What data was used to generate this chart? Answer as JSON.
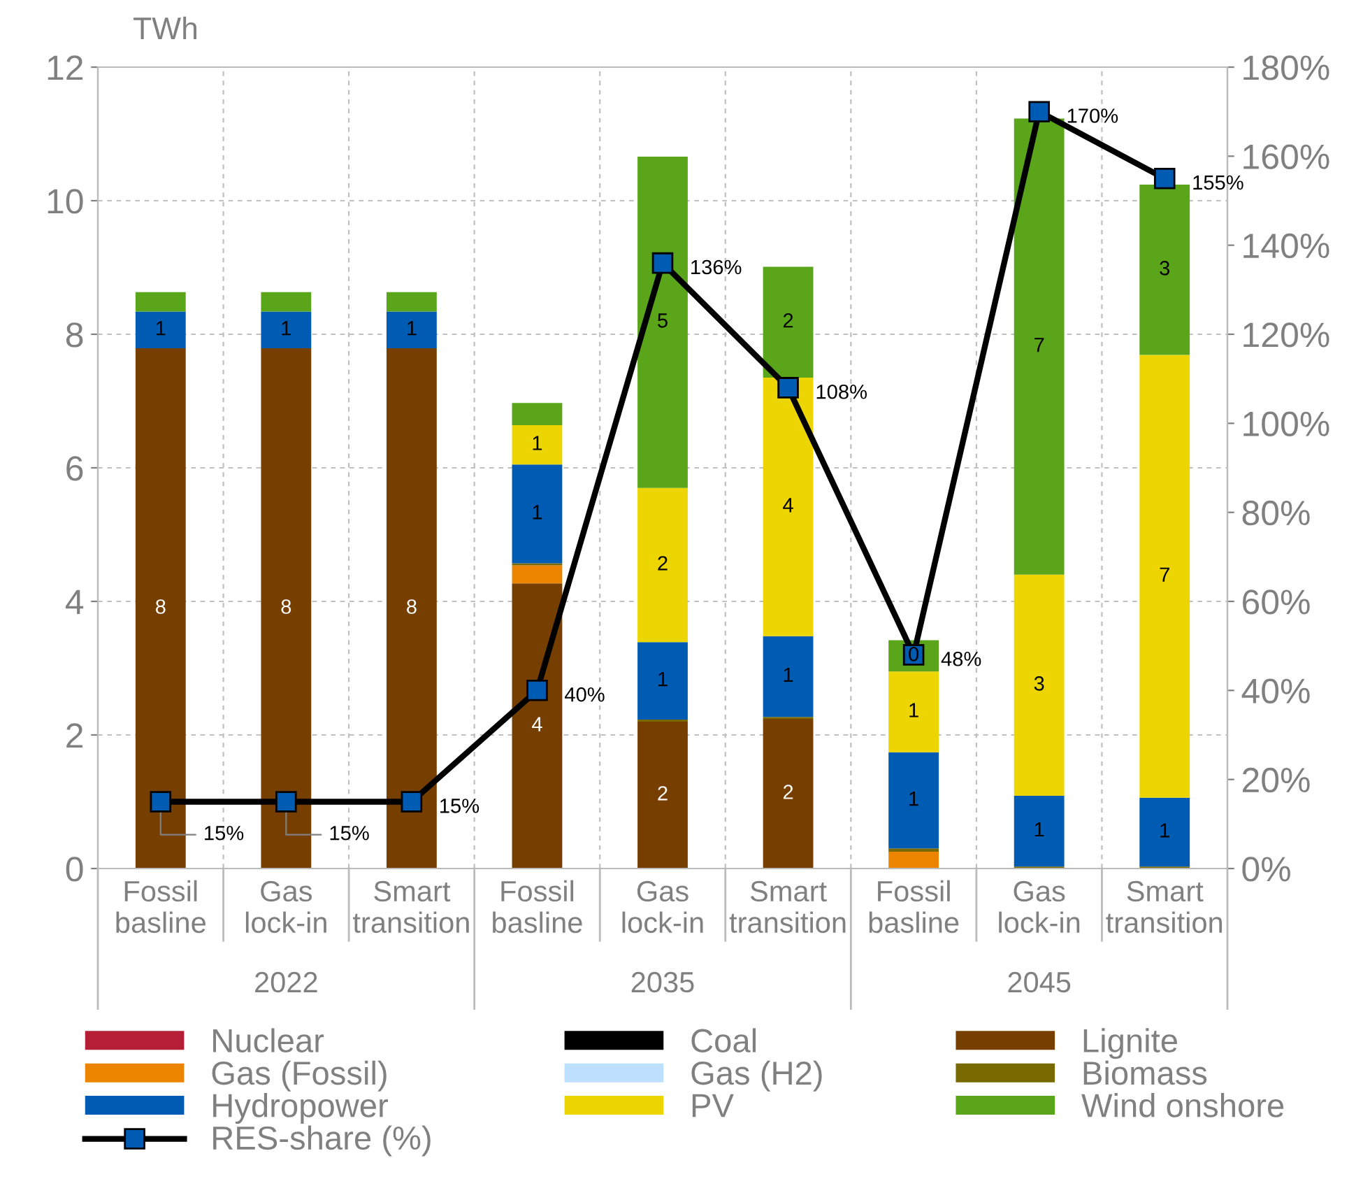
{
  "chart_data": {
    "type": "bar",
    "stacked": true,
    "ylabel": "TWh",
    "categories": [
      "Fossil basline",
      "Gas lock-in",
      "Smart transition",
      "Fossil basline",
      "Gas lock-in",
      "Smart transition",
      "Fossil basline",
      "Gas lock-in",
      "Smart transition"
    ],
    "annotations": [
      "2022",
      "2035",
      "2045"
    ],
    "ylim": [
      0,
      12
    ],
    "yticks": [
      0,
      2,
      4,
      6,
      8,
      10,
      12
    ],
    "y2lim": [
      0,
      180
    ],
    "y2ticks": [
      {
        "value": 0,
        "label": "0%"
      },
      {
        "value": 20,
        "label": "20%"
      },
      {
        "value": 40,
        "label": "40%"
      },
      {
        "value": 60,
        "label": "60%"
      },
      {
        "value": 80,
        "label": "80%"
      },
      {
        "value": 100,
        "label": "100%"
      },
      {
        "value": 120,
        "label": "120%"
      },
      {
        "value": 140,
        "label": "140%"
      },
      {
        "value": 160,
        "label": "160%"
      },
      {
        "value": 180,
        "label": "180%"
      }
    ],
    "grid": true,
    "legend": "bottom",
    "series": [
      {
        "name": "Nuclear",
        "color": "#b41f35",
        "values": [
          0,
          0,
          0,
          0,
          0,
          0,
          0,
          0,
          0
        ]
      },
      {
        "name": "Coal",
        "color": "#000000",
        "values": [
          0,
          0,
          0,
          0,
          0,
          0,
          0,
          0,
          0
        ]
      },
      {
        "name": "Lignite",
        "color": "#763f00",
        "values": [
          7.79,
          7.79,
          7.79,
          4.27,
          2.2,
          2.24,
          0,
          0,
          0
        ],
        "value_labels": [
          "8",
          "8",
          "8",
          "4",
          "2",
          "2",
          null,
          null,
          null
        ]
      },
      {
        "name": "Gas (Fossil)",
        "color": "#ec8400",
        "values": [
          0,
          0,
          0,
          0.27,
          0,
          0,
          0.25,
          0,
          0
        ]
      },
      {
        "name": "Gas (H2)",
        "color": "#bde0ff",
        "values": [
          0,
          0,
          0,
          0,
          0,
          0,
          0,
          0,
          0
        ]
      },
      {
        "name": "Biomass",
        "color": "#786a00",
        "values": [
          0,
          0,
          0,
          0.03,
          0.03,
          0.03,
          0.05,
          0.03,
          0.03
        ]
      },
      {
        "name": "Hydropower",
        "color": "#005bb2",
        "values": [
          0.55,
          0.55,
          0.55,
          1.48,
          1.16,
          1.21,
          1.44,
          1.06,
          1.03
        ],
        "value_labels": [
          "1",
          "1",
          "1",
          "1",
          "1",
          "1",
          "1",
          "1",
          "1"
        ]
      },
      {
        "name": "PV",
        "color": "#ecd500",
        "values": [
          0,
          0,
          0,
          0.59,
          2.31,
          3.87,
          1.21,
          3.31,
          6.63
        ],
        "value_labels": [
          null,
          null,
          null,
          "1",
          "2",
          "4",
          "1",
          "3",
          "7"
        ]
      },
      {
        "name": "Wind onshore",
        "color": "#5aa51a",
        "values": [
          0.29,
          0.29,
          0.29,
          0.33,
          4.96,
          1.66,
          0.47,
          6.83,
          2.55
        ],
        "value_labels": [
          null,
          null,
          null,
          null,
          "5",
          "2",
          "0",
          "7",
          "3"
        ]
      },
      {
        "name": "RES-share (%)",
        "type": "line",
        "axis": "y2",
        "color": "#000000",
        "marker": "square",
        "values": [
          15,
          15,
          15,
          40,
          136,
          108,
          48,
          170,
          155
        ],
        "value_labels": [
          "15%",
          "15%",
          "15%",
          "40%",
          "136%",
          "108%",
          "48%",
          "170%",
          "155%"
        ]
      }
    ]
  }
}
